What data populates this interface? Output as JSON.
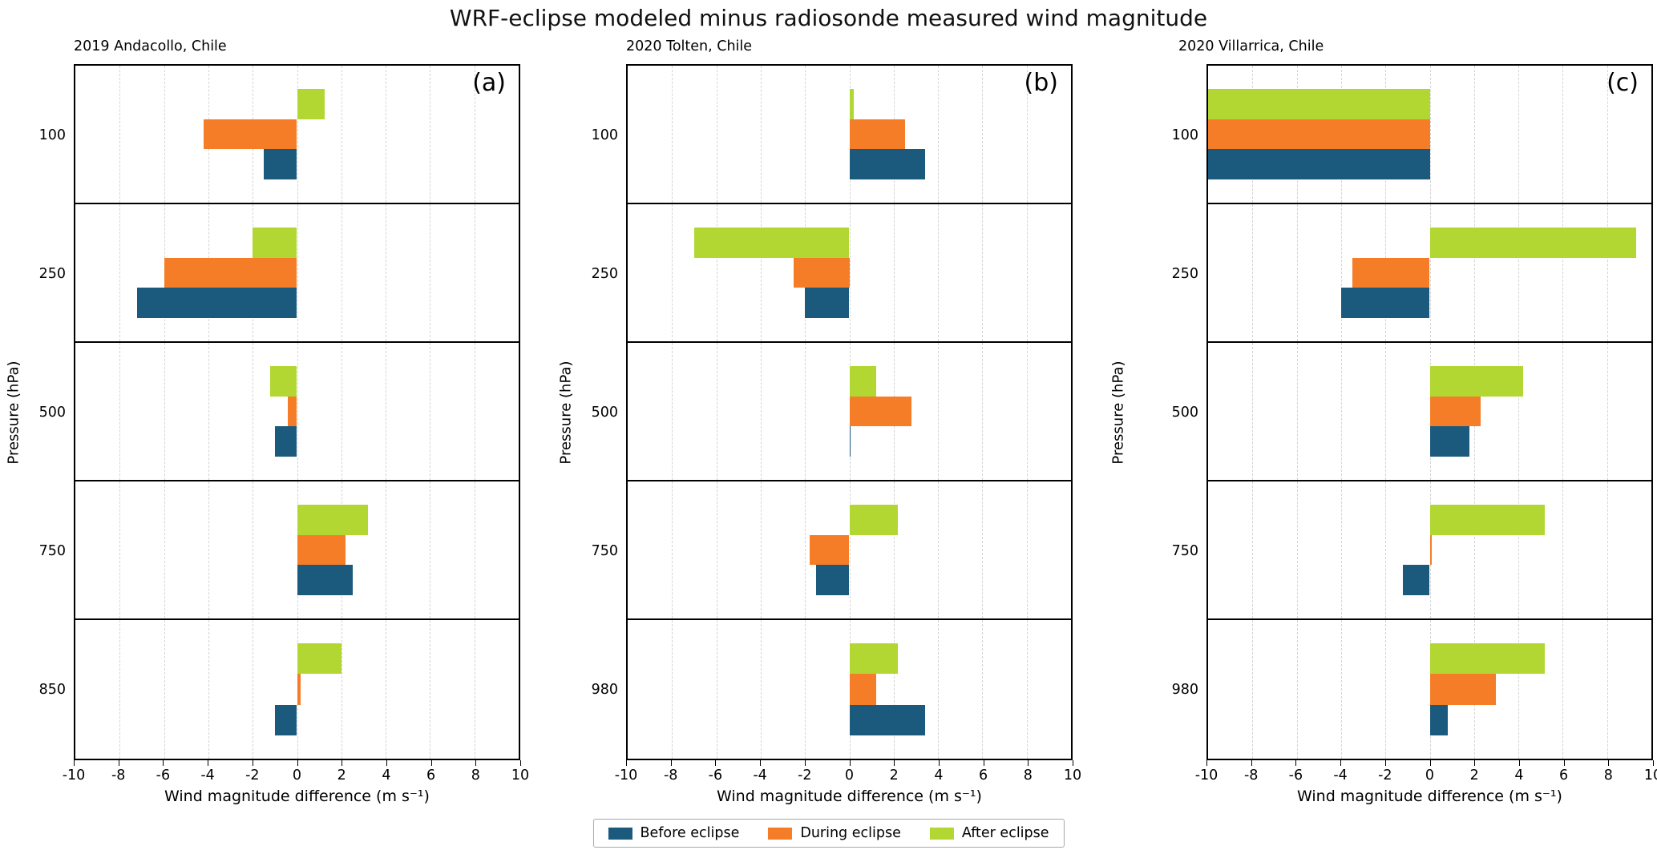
{
  "chart_data": {
    "type": "bar",
    "orientation": "horizontal",
    "title": "WRF-eclipse modeled minus radiosonde measured wind magnitude",
    "xlabel": "Wind magnitude difference (m s⁻¹)",
    "ylabel": "Pressure (hPa)",
    "xlim": [
      -10,
      10
    ],
    "xticks": [
      -10,
      -8,
      -6,
      -4,
      -2,
      0,
      2,
      4,
      6,
      8,
      10
    ],
    "grid": "vertical dashed gridlines at each x tick",
    "bar_stack_order_top_to_bottom": [
      "After eclipse",
      "During eclipse",
      "Before eclipse"
    ],
    "legend_position": "bottom-center",
    "legend": [
      {
        "label": "Before eclipse",
        "color": "#1b5a7d"
      },
      {
        "label": "During eclipse",
        "color": "#f57d28"
      },
      {
        "label": "After eclipse",
        "color": "#b2d732"
      }
    ],
    "panels": [
      {
        "letter": "(a)",
        "title": "2019 Andacollo, Chile",
        "pressures": [
          "100",
          "250",
          "500",
          "750",
          "850"
        ],
        "series": [
          {
            "name": "Before eclipse",
            "values": [
              -1.5,
              -7.2,
              -1.0,
              2.5,
              -1.0
            ]
          },
          {
            "name": "During eclipse",
            "values": [
              -4.2,
              -6.0,
              -0.4,
              2.2,
              0.15
            ]
          },
          {
            "name": "After eclipse",
            "values": [
              1.25,
              -2.0,
              -1.2,
              3.2,
              2.0
            ]
          }
        ]
      },
      {
        "letter": "(b)",
        "title": "2020 Tolten, Chile",
        "pressures": [
          "100",
          "250",
          "500",
          "750",
          "980"
        ],
        "series": [
          {
            "name": "Before eclipse",
            "values": [
              3.4,
              -2.0,
              0.05,
              -1.5,
              3.4
            ]
          },
          {
            "name": "During eclipse",
            "values": [
              2.5,
              -2.5,
              2.8,
              -1.8,
              1.2
            ]
          },
          {
            "name": "After eclipse",
            "values": [
              0.2,
              -7.0,
              1.2,
              2.2,
              2.2
            ]
          }
        ]
      },
      {
        "letter": "(c)",
        "title": "2020 Villarrica, Chile",
        "pressures": [
          "100",
          "250",
          "500",
          "750",
          "980"
        ],
        "series": [
          {
            "name": "Before eclipse",
            "values": [
              -10,
              -4.0,
              1.8,
              -1.2,
              0.8
            ]
          },
          {
            "name": "During eclipse",
            "values": [
              -10,
              -3.5,
              2.3,
              0.1,
              3.0
            ]
          },
          {
            "name": "After eclipse",
            "values": [
              -10,
              9.3,
              4.2,
              5.2,
              5.2
            ]
          }
        ]
      }
    ]
  }
}
